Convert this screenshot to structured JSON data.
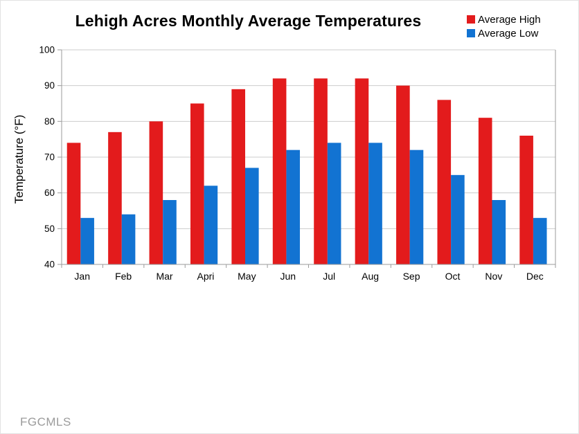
{
  "watermark": {
    "text": "FGCMLS"
  },
  "chart_data": {
    "type": "bar",
    "title": "Lehigh Acres Monthly Average Temperatures",
    "categories": [
      "Jan",
      "Feb",
      "Mar",
      "Apri",
      "May",
      "Jun",
      "Jul",
      "Aug",
      "Sep",
      "Oct",
      "Nov",
      "Dec"
    ],
    "series": [
      {
        "name": "Average High",
        "color": "#e31b1c",
        "values": [
          74,
          77,
          80,
          85,
          89,
          92,
          92,
          92,
          90,
          86,
          81,
          76
        ]
      },
      {
        "name": "Average Low",
        "color": "#1273d2",
        "values": [
          53,
          54,
          58,
          62,
          67,
          72,
          74,
          74,
          72,
          65,
          58,
          53
        ]
      }
    ],
    "xlabel": "",
    "ylabel": "Temperature (°F)",
    "ylim": [
      40,
      100
    ],
    "yticks": [
      40,
      50,
      60,
      70,
      80,
      90,
      100
    ],
    "grid": true,
    "legend_position": "top-right",
    "colors": {
      "grid_line": "#cccccc",
      "axis_line": "#9b9b9b",
      "tick_label": "#000000"
    }
  }
}
